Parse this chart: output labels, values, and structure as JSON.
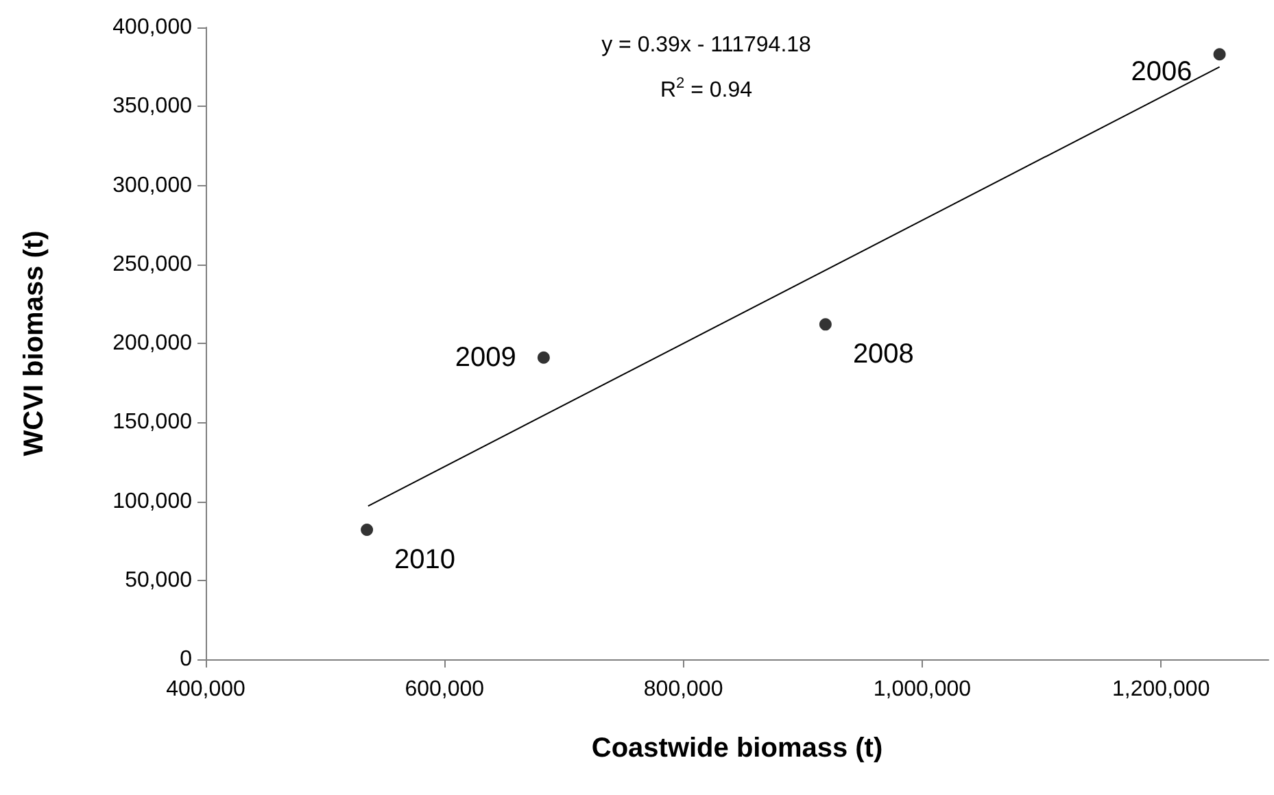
{
  "chart_data": {
    "type": "scatter",
    "xlabel": "Coastwide biomass (t)",
    "ylabel": "WCVI biomass (t)",
    "x": [
      535000,
      683000,
      919000,
      1249000
    ],
    "series": [
      {
        "color": "#000000",
        "marker": "circle",
        "values": [
          82000,
          191000,
          212000,
          383000
        ]
      },
      {
        "type": "line",
        "color": "#000000",
        "marker": "none",
        "x": [
          536000,
          1249000
        ],
        "values": [
          97000,
          375000
        ]
      }
    ],
    "grid": false,
    "xlim": [
      400000,
      1290000
    ],
    "xticks": [
      {
        "value": 400000,
        "label": "400,000"
      },
      {
        "value": 600000,
        "label": "600,000"
      },
      {
        "value": 800000,
        "label": "800,000"
      },
      {
        "value": 1000000,
        "label": "1,000,000"
      },
      {
        "value": 1200000,
        "label": "1,200,000"
      }
    ],
    "ylim": [
      0,
      400000
    ],
    "yticks": [
      0,
      {
        "value": 50000,
        "label": "50,000"
      },
      {
        "value": 100000,
        "label": "100,000"
      },
      {
        "value": 150000,
        "label": "150,000"
      },
      {
        "value": 200000,
        "label": "200,000"
      },
      {
        "value": 250000,
        "label": "250,000"
      },
      {
        "value": 300000,
        "label": "300,000"
      },
      {
        "value": 350000,
        "label": "350,000"
      },
      {
        "value": 400000,
        "label": "400,000"
      }
    ],
    "annotations": [
      {
        "text": "2010",
        "x": 535000,
        "y": 82000
      },
      {
        "text": "2009",
        "x": 683000,
        "y": 191000
      },
      {
        "text": "2008",
        "x": 919000,
        "y": 212000
      },
      {
        "text": "2006",
        "x": 1249000,
        "y": 383000
      },
      "y = 0.39x - 111794.18",
      "R$^{2}$ = 0.94"
    ]
  }
}
